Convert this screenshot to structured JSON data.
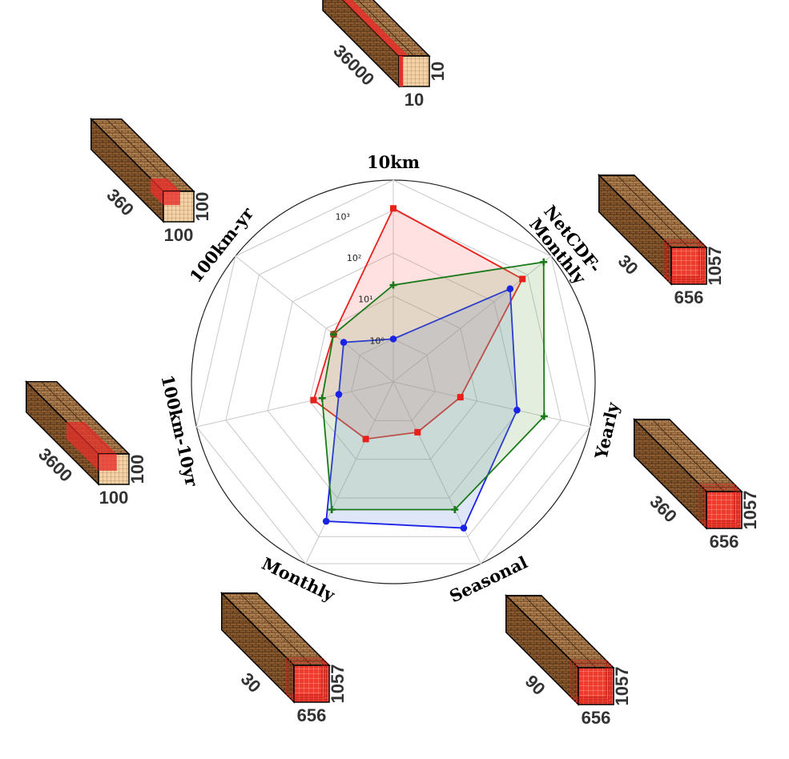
{
  "chart_data": {
    "type": "radar",
    "scale": "log",
    "rlim": [
      0.1,
      5000
    ],
    "rticks": [
      {
        "value": 1,
        "label": "10⁰"
      },
      {
        "value": 10,
        "label": "10¹"
      },
      {
        "value": 100,
        "label": "10²"
      },
      {
        "value": 1000,
        "label": "10³"
      }
    ],
    "grid": true,
    "axes": [
      "10km",
      "NetCDF-Monthly",
      "Yearly",
      "Seasonal",
      "Monthly",
      "100km-10yr",
      "100km-yr"
    ],
    "series": [
      {
        "color": "#e8201c",
        "fill": "rgba(255,120,120,0.22)",
        "marker": "square",
        "values": [
          1100,
          700,
          4,
          2,
          3,
          8,
          6
        ]
      },
      {
        "color": "#1a22e6",
        "fill": "rgba(110,140,220,0.22)",
        "marker": "circle",
        "values": [
          1,
          300,
          90,
          600,
          400,
          2,
          3
        ]
      },
      {
        "color": "#1a7a1a",
        "fill": "rgba(120,170,90,0.20)",
        "marker": "plus",
        "values": [
          18,
          3000,
          400,
          200,
          200,
          5,
          6
        ]
      }
    ]
  },
  "cubes": [
    {
      "name": "cube-10km",
      "depth_label": "36000",
      "width_label": "10",
      "height_label": "10",
      "highlight": "strip"
    },
    {
      "name": "cube-netcdf-monthly",
      "depth_label": "30",
      "width_label": "656",
      "height_label": "1057",
      "highlight": "face"
    },
    {
      "name": "cube-yearly",
      "depth_label": "360",
      "width_label": "656",
      "height_label": "1057",
      "highlight": "face"
    },
    {
      "name": "cube-seasonal",
      "depth_label": "90",
      "width_label": "656",
      "height_label": "1057",
      "highlight": "face"
    },
    {
      "name": "cube-monthly",
      "depth_label": "30",
      "width_label": "656",
      "height_label": "1057",
      "highlight": "face"
    },
    {
      "name": "cube-100km-10yr",
      "depth_label": "3600",
      "width_label": "100",
      "height_label": "100",
      "highlight": "block"
    },
    {
      "name": "cube-100km-yr",
      "depth_label": "360",
      "width_label": "100",
      "height_label": "100",
      "highlight": "small"
    }
  ],
  "colors": {
    "cube_top": "#c9a27a",
    "cube_side": "#7a4a22",
    "cube_front": "#f1cfa8",
    "highlight": "#e8302a"
  }
}
